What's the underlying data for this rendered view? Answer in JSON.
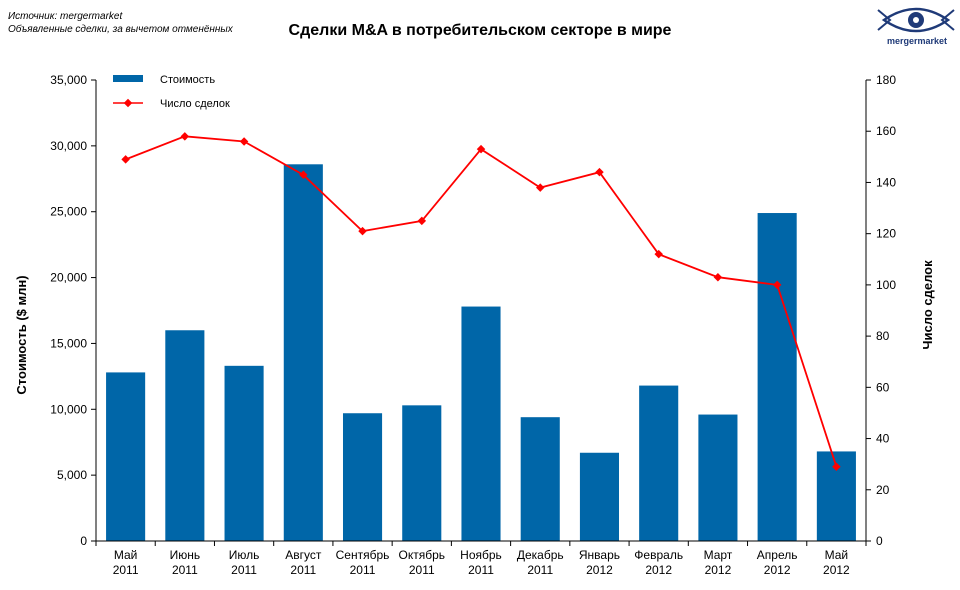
{
  "source": {
    "line1": "Источник: mergermarket",
    "line2": "Объявленные сделки, за вычетом отменённых"
  },
  "logo": {
    "text": "mergermarket",
    "icon": "eye-logo-icon",
    "color": "#1f3a78"
  },
  "chart_data": {
    "type": "bar",
    "title": "Сделки M&A в потребительском секторе в мире",
    "categories": [
      [
        "Май",
        "2011"
      ],
      [
        "Июнь",
        "2011"
      ],
      [
        "Июль",
        "2011"
      ],
      [
        "Август",
        "2011"
      ],
      [
        "Сентябрь",
        "2011"
      ],
      [
        "Октябрь",
        "2011"
      ],
      [
        "Ноябрь",
        "2011"
      ],
      [
        "Декабрь",
        "2011"
      ],
      [
        "Январь",
        "2012"
      ],
      [
        "Февраль",
        "2012"
      ],
      [
        "Март",
        "2012"
      ],
      [
        "Апрель",
        "2012"
      ],
      [
        "Май",
        "2012"
      ]
    ],
    "ylabel": "Стоимость  ($ млн)",
    "y2label": "Число сделок",
    "ylim": [
      0,
      35000
    ],
    "y2lim": [
      0,
      180
    ],
    "yticks": [
      "0",
      "5,000",
      "10,000",
      "15,000",
      "20,000",
      "25,000",
      "30,000",
      "35,000"
    ],
    "y2ticks": [
      "0",
      "20",
      "40",
      "60",
      "80",
      "100",
      "120",
      "140",
      "160",
      "180"
    ],
    "legend_position": "top-left",
    "grid": false,
    "series": [
      {
        "name": "Стоимость",
        "type": "bar",
        "axis": "left",
        "color": "#0066a8",
        "values": [
          12800,
          16000,
          13300,
          28600,
          9700,
          10300,
          17800,
          9400,
          6700,
          11800,
          9600,
          24900,
          6800
        ]
      },
      {
        "name": "Число сделок",
        "type": "line",
        "axis": "right",
        "color": "#ff0000",
        "values": [
          149,
          158,
          156,
          143,
          121,
          125,
          153,
          138,
          144,
          112,
          103,
          100,
          29
        ]
      }
    ]
  }
}
